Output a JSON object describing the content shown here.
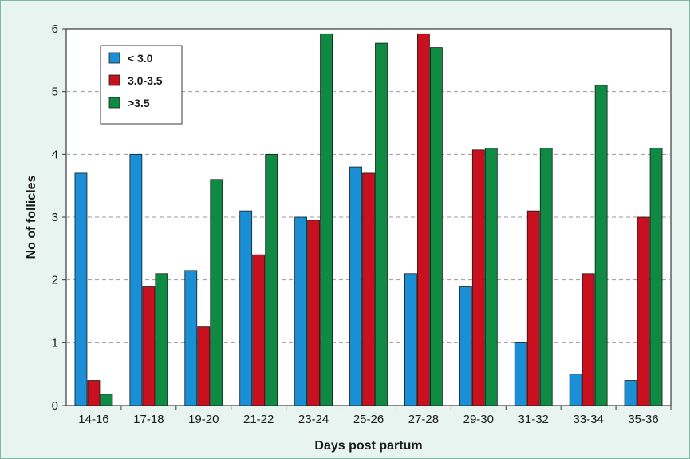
{
  "chart_data": {
    "type": "bar",
    "title": "",
    "xlabel": "Days post partum",
    "ylabel": "No of follicles",
    "ylim": [
      0,
      6
    ],
    "yticks": [
      "0",
      "1",
      "2",
      "3",
      "4",
      "5",
      "6"
    ],
    "grid": "horizontal dashed",
    "legend_position": "top-left",
    "categories": [
      "14-16",
      "17-18",
      "19-20",
      "21-22",
      "23-24",
      "25-26",
      "27-28",
      "29-30",
      "31-32",
      "33-34",
      "35-36"
    ],
    "series": [
      {
        "name": "< 3.0",
        "color": "#1a8fd6",
        "values": [
          3.7,
          4.0,
          2.15,
          3.1,
          3.0,
          3.8,
          2.1,
          1.9,
          1.0,
          0.5,
          0.4
        ]
      },
      {
        "name": "3.0-3.5",
        "color": "#c8101e",
        "values": [
          0.4,
          1.9,
          1.25,
          2.4,
          2.95,
          3.7,
          5.92,
          4.07,
          3.1,
          2.1,
          3.0
        ]
      },
      {
        "name": ">3.5",
        "color": "#0e8a43",
        "values": [
          0.18,
          2.1,
          3.6,
          4.0,
          5.92,
          5.77,
          5.7,
          4.1,
          4.1,
          5.1,
          4.1
        ]
      }
    ]
  }
}
